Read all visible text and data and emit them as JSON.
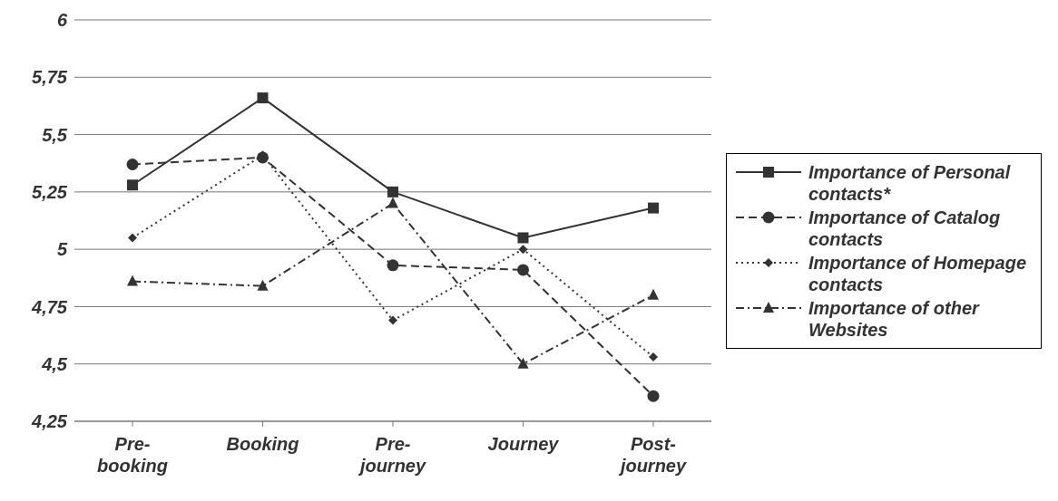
{
  "chart_data": {
    "type": "line",
    "categories": [
      "Pre-booking",
      "Booking",
      "Pre-journey",
      "Journey",
      "Post-journey"
    ],
    "series": [
      {
        "name": "Importance of Personal contacts*",
        "color": "#333333",
        "marker": "square",
        "line_style": "solid",
        "values": [
          5.28,
          5.66,
          5.25,
          5.05,
          5.18
        ]
      },
      {
        "name": "Importance of Catalog contacts",
        "color": "#333333",
        "marker": "circle",
        "line_style": "dashed",
        "values": [
          5.37,
          5.4,
          4.93,
          4.91,
          4.36
        ]
      },
      {
        "name": "Importance of Homepage contacts",
        "color": "#333333",
        "marker": "diamond",
        "line_style": "dotted",
        "values": [
          5.05,
          5.41,
          4.69,
          5.0,
          4.53
        ]
      },
      {
        "name": "Importance of other Websites",
        "color": "#333333",
        "marker": "triangle",
        "line_style": "dashdot",
        "values": [
          4.86,
          4.84,
          5.2,
          4.5,
          4.8
        ]
      }
    ],
    "ylim": [
      4.25,
      6
    ],
    "yticks": [
      {
        "value": 4.25,
        "label": "4,25"
      },
      {
        "value": 4.5,
        "label": "4,5"
      },
      {
        "value": 4.75,
        "label": "4,75"
      },
      {
        "value": 5,
        "label": "5"
      },
      {
        "value": 5.25,
        "label": "5,25"
      },
      {
        "value": 5.5,
        "label": "5,5"
      },
      {
        "value": 5.75,
        "label": "5,75"
      },
      {
        "value": 6,
        "label": "6"
      }
    ],
    "grid": "y",
    "legend": "right"
  }
}
